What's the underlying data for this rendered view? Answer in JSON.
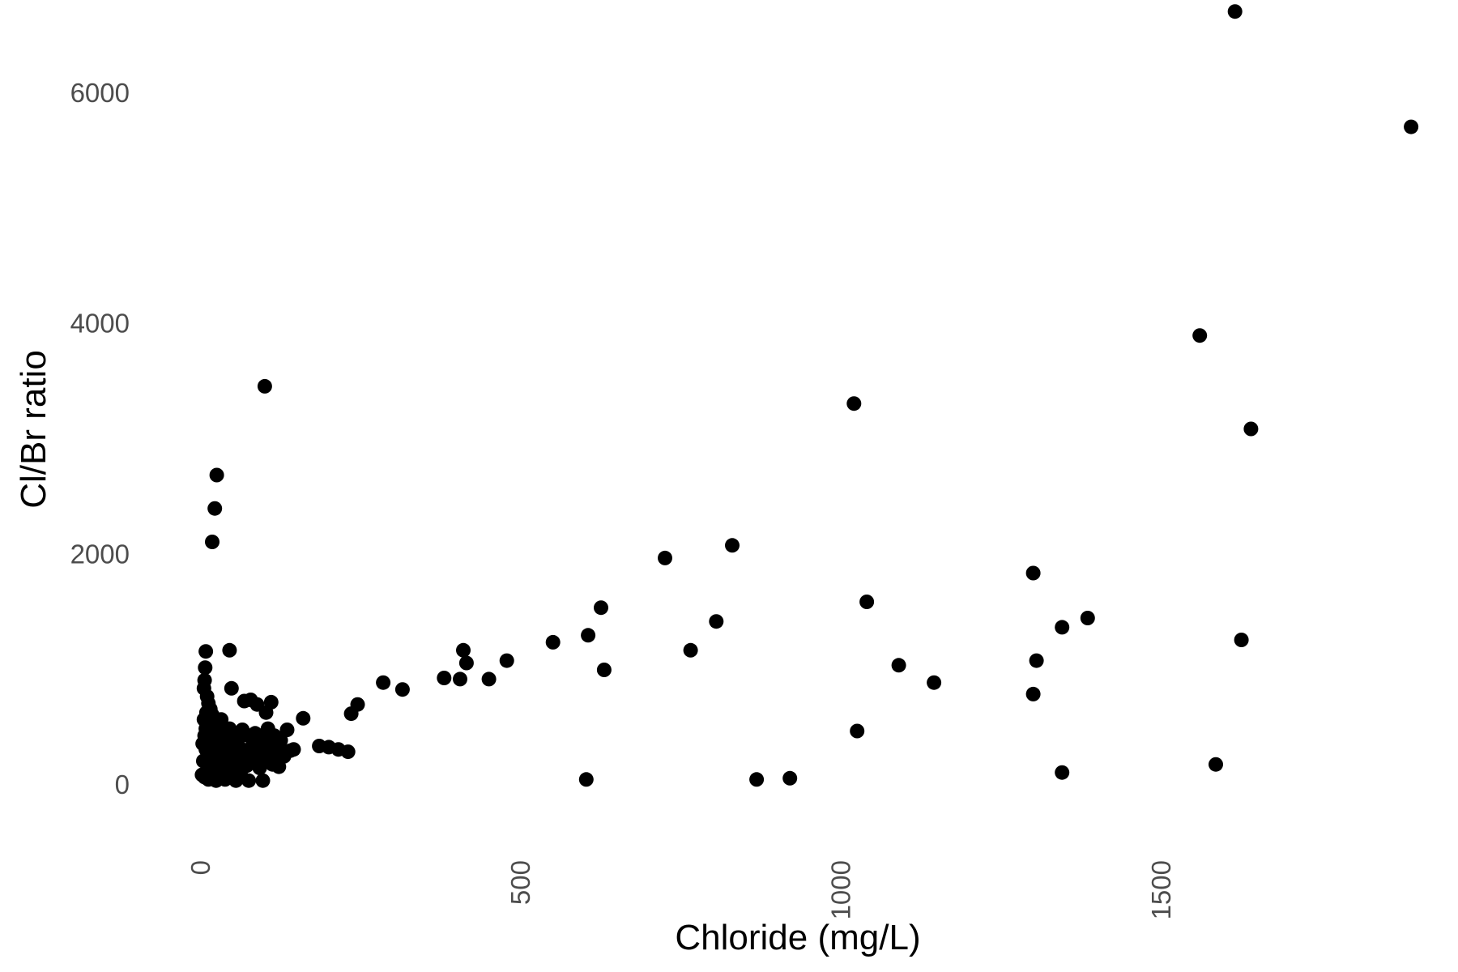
{
  "chart_data": {
    "type": "scatter",
    "title": "",
    "xlabel": "Chloride (mg/L)",
    "ylabel": "Cl/Br ratio",
    "xlim": [
      -20,
      1900
    ],
    "ylim": [
      -450,
      6800
    ],
    "xticks": [
      0,
      500,
      1000,
      1500
    ],
    "yticks": [
      0,
      2000,
      4000,
      6000
    ],
    "grid": false,
    "legend": "none",
    "point_color": "#000000",
    "tick_color": "#4d4d4d",
    "series": [
      {
        "name": "samples",
        "points": [
          [
            1615,
            6700
          ],
          [
            1890,
            5700
          ],
          [
            1560,
            3890
          ],
          [
            1640,
            3080
          ],
          [
            1020,
            3300
          ],
          [
            100,
            3450
          ],
          [
            25,
            2680
          ],
          [
            22,
            2390
          ],
          [
            18,
            2100
          ],
          [
            830,
            2070
          ],
          [
            725,
            1960
          ],
          [
            1300,
            1830
          ],
          [
            1040,
            1580
          ],
          [
            625,
            1530
          ],
          [
            805,
            1410
          ],
          [
            1385,
            1440
          ],
          [
            1345,
            1360
          ],
          [
            605,
            1290
          ],
          [
            550,
            1230
          ],
          [
            1625,
            1250
          ],
          [
            410,
            1160
          ],
          [
            765,
            1160
          ],
          [
            415,
            1050
          ],
          [
            478,
            1070
          ],
          [
            1305,
            1070
          ],
          [
            630,
            990
          ],
          [
            1090,
            1030
          ],
          [
            1145,
            880
          ],
          [
            380,
            920
          ],
          [
            405,
            910
          ],
          [
            450,
            910
          ],
          [
            285,
            880
          ],
          [
            315,
            820
          ],
          [
            1300,
            780
          ],
          [
            1025,
            460
          ],
          [
            245,
            690
          ],
          [
            235,
            610
          ],
          [
            160,
            570
          ],
          [
            868,
            40
          ],
          [
            920,
            50
          ],
          [
            602,
            40
          ],
          [
            1345,
            100
          ],
          [
            1585,
            170
          ],
          [
            8,
            1150
          ],
          [
            45,
            1160
          ],
          [
            7,
            1010
          ],
          [
            6,
            900
          ],
          [
            5,
            830
          ],
          [
            48,
            830
          ],
          [
            68,
            720
          ],
          [
            78,
            730
          ],
          [
            88,
            690
          ],
          [
            110,
            710
          ],
          [
            102,
            620
          ],
          [
            10,
            760
          ],
          [
            12,
            700
          ],
          [
            15,
            650
          ],
          [
            18,
            600
          ],
          [
            20,
            560
          ],
          [
            22,
            520
          ],
          [
            8,
            480
          ],
          [
            12,
            440
          ],
          [
            25,
            470
          ],
          [
            35,
            450
          ],
          [
            45,
            480
          ],
          [
            55,
            430
          ],
          [
            65,
            470
          ],
          [
            85,
            440
          ],
          [
            95,
            400
          ],
          [
            105,
            480
          ],
          [
            115,
            420
          ],
          [
            125,
            380
          ],
          [
            135,
            470
          ],
          [
            145,
            300
          ],
          [
            185,
            330
          ],
          [
            200,
            320
          ],
          [
            215,
            300
          ],
          [
            230,
            280
          ],
          [
            3,
            350
          ],
          [
            8,
            300
          ],
          [
            15,
            330
          ],
          [
            22,
            260
          ],
          [
            30,
            300
          ],
          [
            40,
            350
          ],
          [
            50,
            250
          ],
          [
            60,
            320
          ],
          [
            70,
            280
          ],
          [
            80,
            220
          ],
          [
            90,
            300
          ],
          [
            100,
            250
          ],
          [
            110,
            210
          ],
          [
            120,
            330
          ],
          [
            130,
            240
          ],
          [
            140,
            290
          ],
          [
            4,
            200
          ],
          [
            10,
            170
          ],
          [
            18,
            210
          ],
          [
            26,
            150
          ],
          [
            34,
            190
          ],
          [
            42,
            130
          ],
          [
            52,
            170
          ],
          [
            62,
            110
          ],
          [
            72,
            160
          ],
          [
            82,
            190
          ],
          [
            92,
            140
          ],
          [
            112,
            170
          ],
          [
            122,
            150
          ],
          [
            2,
            80
          ],
          [
            6,
            60
          ],
          [
            12,
            40
          ],
          [
            18,
            100
          ],
          [
            24,
            30
          ],
          [
            30,
            70
          ],
          [
            38,
            40
          ],
          [
            46,
            80
          ],
          [
            55,
            30
          ],
          [
            64,
            60
          ],
          [
            75,
            30
          ],
          [
            97,
            30
          ],
          [
            5,
            560
          ],
          [
            9,
            620
          ],
          [
            14,
            520
          ],
          [
            28,
            380
          ],
          [
            32,
            560
          ],
          [
            58,
            390
          ],
          [
            74,
            420
          ],
          [
            88,
            350
          ],
          [
            108,
            360
          ],
          [
            118,
            290
          ],
          [
            16,
            420
          ],
          [
            26,
            530
          ],
          [
            44,
            230
          ],
          [
            54,
            350
          ],
          [
            66,
            210
          ],
          [
            78,
            310
          ],
          [
            6,
            420
          ],
          [
            11,
            250
          ],
          [
            20,
            370
          ],
          [
            36,
            280
          ],
          [
            48,
            360
          ],
          [
            84,
            270
          ],
          [
            94,
            190
          ],
          [
            126,
            250
          ]
        ]
      }
    ]
  }
}
